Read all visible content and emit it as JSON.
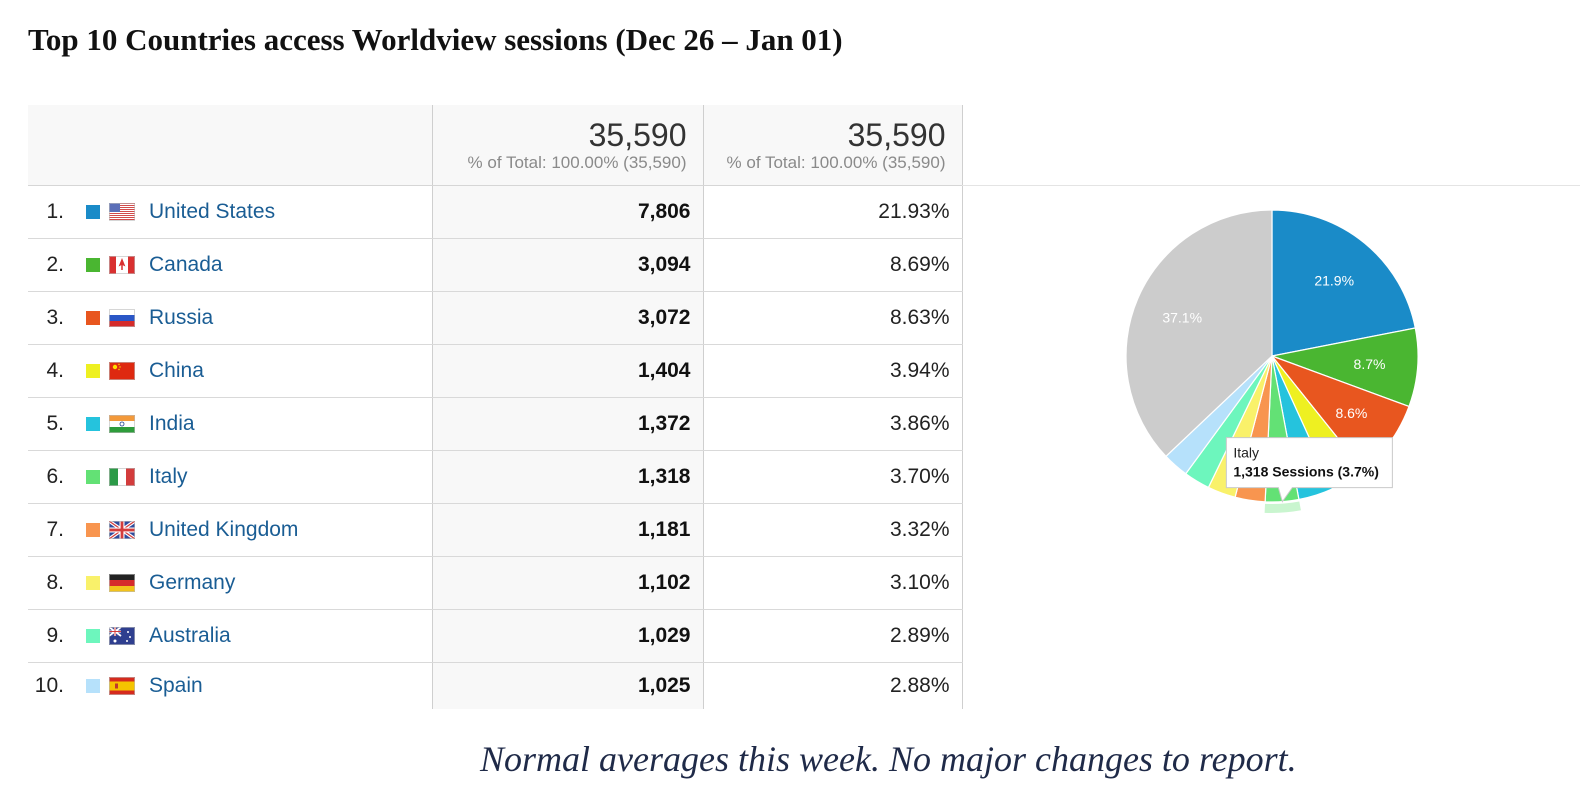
{
  "title": "Top 10 Countries access Worldview sessions (Dec 26 – Jan 01)",
  "header": {
    "sessions_total": "35,590",
    "sessions_total_sub": "% of Total: 100.00% (35,590)",
    "pct_total": "35,590",
    "pct_total_sub": "% of Total: 100.00% (35,590)"
  },
  "rows": [
    {
      "rank": "1.",
      "country": "United States",
      "sessions": "7,806",
      "pct": "21.93%",
      "color": "#1a8bc8",
      "flag_icon": "us-flag-icon"
    },
    {
      "rank": "2.",
      "country": "Canada",
      "sessions": "3,094",
      "pct": "8.69%",
      "color": "#4ab631",
      "flag_icon": "canada-flag-icon"
    },
    {
      "rank": "3.",
      "country": "Russia",
      "sessions": "3,072",
      "pct": "8.63%",
      "color": "#e8561f",
      "flag_icon": "russia-flag-icon"
    },
    {
      "rank": "4.",
      "country": "China",
      "sessions": "1,404",
      "pct": "3.94%",
      "color": "#eef021",
      "flag_icon": "china-flag-icon"
    },
    {
      "rank": "5.",
      "country": "India",
      "sessions": "1,372",
      "pct": "3.86%",
      "color": "#25c3dd",
      "flag_icon": "india-flag-icon"
    },
    {
      "rank": "6.",
      "country": "Italy",
      "sessions": "1,318",
      "pct": "3.70%",
      "color": "#63e175",
      "flag_icon": "italy-flag-icon"
    },
    {
      "rank": "7.",
      "country": "United Kingdom",
      "sessions": "1,181",
      "pct": "3.32%",
      "color": "#f8954f",
      "flag_icon": "uk-flag-icon"
    },
    {
      "rank": "8.",
      "country": "Germany",
      "sessions": "1,102",
      "pct": "3.10%",
      "color": "#f9f16a",
      "flag_icon": "germany-flag-icon"
    },
    {
      "rank": "9.",
      "country": "Australia",
      "sessions": "1,029",
      "pct": "2.89%",
      "color": "#6df6bd",
      "flag_icon": "australia-flag-icon"
    },
    {
      "rank": "10.",
      "country": "Spain",
      "sessions": "1,025",
      "pct": "2.88%",
      "color": "#b6e1fb",
      "flag_icon": "spain-flag-icon"
    }
  ],
  "chart_data": {
    "type": "pie",
    "categories": [
      "United States",
      "Canada",
      "Russia",
      "China",
      "India",
      "Italy",
      "United Kingdom",
      "Germany",
      "Australia",
      "Spain",
      ""
    ],
    "values": [
      21.93,
      8.69,
      8.63,
      3.94,
      3.86,
      3.7,
      3.32,
      3.1,
      2.89,
      2.88,
      37.06
    ],
    "colors": [
      "#1a8bc8",
      "#4ab631",
      "#e8561f",
      "#eef021",
      "#25c3dd",
      "#63e175",
      "#f8954f",
      "#f9f16a",
      "#6df6bd",
      "#b6e1fb",
      "#cccccc"
    ],
    "slice_labels": [
      "21.9%",
      "8.7%",
      "8.6%",
      "",
      "",
      "",
      "",
      "",
      "",
      "",
      "37.1%"
    ],
    "highlighted_category": "Italy",
    "tooltip": {
      "title": "Italy",
      "value": "1,318 Sessions (3.7%)"
    }
  },
  "footnote": "Normal averages this week.  No major changes to report."
}
